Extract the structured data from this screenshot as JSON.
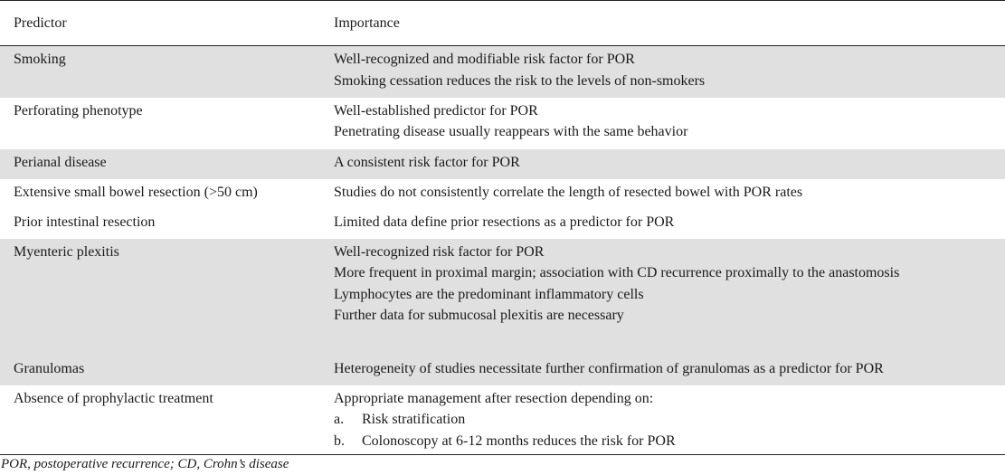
{
  "table": {
    "headers": [
      "Predictor",
      "Importance"
    ],
    "rows": [
      {
        "predictor": "Smoking",
        "importance": [
          "Well-recognized and modifiable risk factor for POR",
          "Smoking cessation reduces the risk to the levels of non-smokers"
        ]
      },
      {
        "predictor": "Perforating phenotype",
        "importance": [
          "Well-established predictor for POR",
          "Penetrating disease usually reappears with the same behavior"
        ]
      },
      {
        "predictor": "Perianal disease",
        "importance": [
          "A consistent risk factor for POR"
        ]
      },
      {
        "predictor": "Extensive small bowel resection (>50 cm)",
        "importance": [
          "Studies do not consistently correlate the length of resected bowel with POR rates"
        ]
      },
      {
        "predictor": "Prior intestinal resection",
        "importance": [
          "Limited data define prior resections as a predictor for POR"
        ]
      },
      {
        "predictor": "Myenteric plexitis",
        "importance": [
          "Well-recognized risk factor for POR",
          "More frequent in proximal margin; association with CD recurrence proximally to the anastomosis",
          "Lymphocytes are the predominant inflammatory cells",
          "Further data for submucosal plexitis are necessary"
        ]
      },
      {
        "predictor": "Granulomas",
        "importance": [
          "Heterogeneity of studies necessitate further confirmation of granulomas as a predictor for POR"
        ]
      },
      {
        "predictor": "Absence of prophylactic treatment",
        "importance": [
          "Appropriate management after resection depending on:"
        ],
        "subitems": [
          {
            "marker": "a.",
            "text": "Risk stratification"
          },
          {
            "marker": "b.",
            "text": "Colonoscopy at 6-12 months reduces the risk for POR"
          }
        ]
      }
    ]
  },
  "footnote": "POR, postoperative recurrence; CD, Crohn’s disease"
}
